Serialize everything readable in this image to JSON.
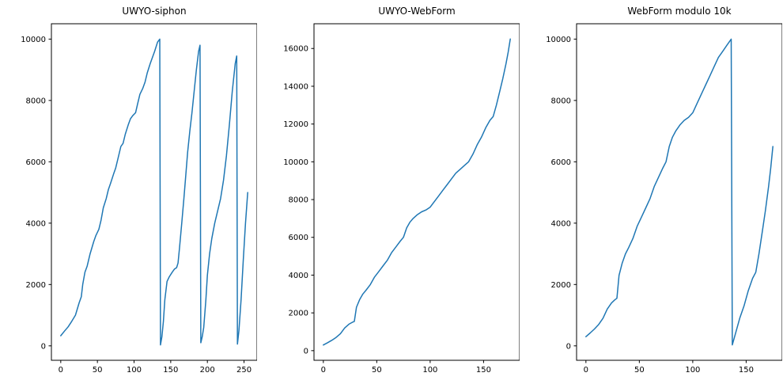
{
  "figure": {
    "background": "#ffffff",
    "line_color": "#1f77b4",
    "axis_color": "#000000"
  },
  "chart_data": [
    {
      "type": "line",
      "title": "UWYO-siphon",
      "xlabel": "",
      "ylabel": "",
      "grid": false,
      "legend": false,
      "xlim": [
        -12.75,
        267.75
      ],
      "ylim": [
        -470,
        10500
      ],
      "xticks": [
        0,
        50,
        100,
        150,
        200,
        250
      ],
      "yticks": [
        0,
        2000,
        4000,
        6000,
        8000,
        10000
      ],
      "x": [
        0,
        5,
        10,
        15,
        20,
        25,
        28,
        30,
        33,
        36,
        40,
        45,
        48,
        52,
        55,
        58,
        62,
        65,
        68,
        72,
        75,
        78,
        82,
        85,
        88,
        92,
        95,
        98,
        102,
        105,
        108,
        112,
        115,
        118,
        122,
        125,
        128,
        132,
        135,
        136,
        138,
        140,
        142,
        145,
        148,
        152,
        155,
        158,
        160,
        162,
        165,
        168,
        170,
        173,
        176,
        179,
        182,
        185,
        188,
        190,
        191,
        193,
        195,
        198,
        200,
        203,
        206,
        210,
        214,
        218,
        222,
        226,
        230,
        234,
        238,
        240,
        241,
        243,
        246,
        249,
        252,
        255
      ],
      "y": [
        330,
        480,
        620,
        800,
        1000,
        1400,
        1600,
        2000,
        2400,
        2600,
        3000,
        3400,
        3600,
        3800,
        4100,
        4500,
        4800,
        5100,
        5300,
        5600,
        5800,
        6100,
        6500,
        6600,
        6900,
        7200,
        7400,
        7500,
        7600,
        7900,
        8200,
        8400,
        8600,
        8900,
        9200,
        9400,
        9600,
        9900,
        10000,
        30,
        300,
        800,
        1500,
        2100,
        2250,
        2400,
        2500,
        2550,
        2700,
        3200,
        4000,
        4800,
        5400,
        6300,
        7000,
        7600,
        8300,
        9000,
        9600,
        9800,
        100,
        300,
        600,
        1500,
        2300,
        3000,
        3500,
        4000,
        4400,
        4800,
        5400,
        6200,
        7200,
        8300,
        9200,
        9450,
        60,
        500,
        1500,
        2800,
        4000,
        5000
      ]
    },
    {
      "type": "line",
      "title": "UWYO-WebForm",
      "xlabel": "",
      "ylabel": "",
      "grid": false,
      "legend": false,
      "xlim": [
        -8.75,
        183.75
      ],
      "ylim": [
        -510,
        17310
      ],
      "xticks": [
        0,
        50,
        100,
        150
      ],
      "yticks": [
        0,
        2000,
        4000,
        6000,
        8000,
        10000,
        12000,
        14000,
        16000
      ],
      "x": [
        0,
        4,
        8,
        12,
        16,
        20,
        24,
        27,
        29,
        31,
        34,
        37,
        40,
        44,
        48,
        52,
        56,
        60,
        64,
        68,
        72,
        75,
        78,
        81,
        84,
        88,
        92,
        96,
        100,
        104,
        108,
        112,
        116,
        120,
        124,
        128,
        132,
        136,
        140,
        144,
        148,
        152,
        156,
        159,
        162,
        165,
        168,
        171,
        173,
        175
      ],
      "y": [
        300,
        420,
        550,
        700,
        900,
        1200,
        1400,
        1500,
        1550,
        2300,
        2700,
        3000,
        3200,
        3500,
        3900,
        4200,
        4500,
        4800,
        5200,
        5500,
        5800,
        6000,
        6500,
        6800,
        7000,
        7200,
        7350,
        7450,
        7600,
        7900,
        8200,
        8500,
        8800,
        9100,
        9400,
        9600,
        9800,
        10000,
        10400,
        10900,
        11300,
        11800,
        12200,
        12400,
        13000,
        13700,
        14400,
        15200,
        15800,
        16500
      ]
    },
    {
      "type": "line",
      "title": "WebForm modulo 10k",
      "xlabel": "",
      "ylabel": "",
      "grid": false,
      "legend": false,
      "xlim": [
        -8.75,
        183.75
      ],
      "ylim": [
        -470,
        10500
      ],
      "xticks": [
        0,
        50,
        100,
        150
      ],
      "yticks": [
        0,
        2000,
        4000,
        6000,
        8000,
        10000
      ],
      "x": [
        0,
        4,
        8,
        12,
        16,
        20,
        24,
        27,
        29,
        31,
        34,
        37,
        40,
        44,
        48,
        52,
        56,
        60,
        64,
        68,
        72,
        75,
        78,
        81,
        84,
        88,
        92,
        96,
        100,
        104,
        108,
        112,
        116,
        120,
        124,
        128,
        132,
        136,
        137,
        140,
        144,
        148,
        152,
        156,
        159,
        162,
        165,
        168,
        171,
        173,
        175
      ],
      "y": [
        300,
        420,
        550,
        700,
        900,
        1200,
        1400,
        1500,
        1550,
        2300,
        2700,
        3000,
        3200,
        3500,
        3900,
        4200,
        4500,
        4800,
        5200,
        5500,
        5800,
        6000,
        6500,
        6800,
        7000,
        7200,
        7350,
        7450,
        7600,
        7900,
        8200,
        8500,
        8800,
        9100,
        9400,
        9600,
        9800,
        10000,
        30,
        400,
        900,
        1300,
        1800,
        2200,
        2400,
        3000,
        3700,
        4400,
        5200,
        5800,
        6500
      ]
    }
  ]
}
